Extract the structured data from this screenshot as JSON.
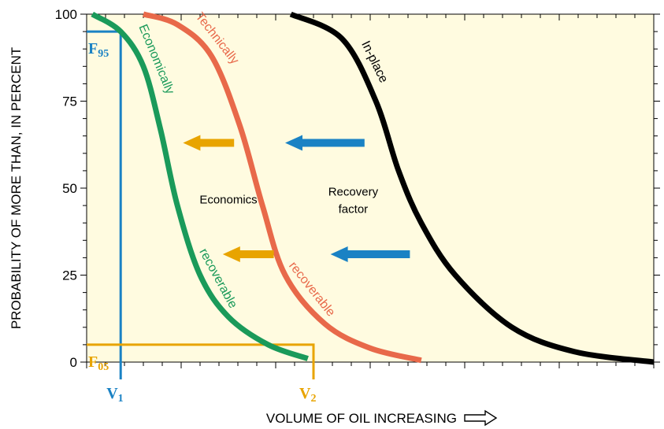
{
  "chart_data": {
    "type": "line",
    "ylabel": "PROBABILITY OF MORE THAN, IN PERCENT",
    "xlabel": "VOLUME OF OIL INCREASING",
    "ylim": [
      0,
      100
    ],
    "y_ticks": [
      "0",
      "25",
      "50",
      "75",
      "100"
    ],
    "x_ticks_labeled": false,
    "series": [
      {
        "name": "Economically recoverable",
        "color": "#1a9a5a",
        "label_parts": [
          "Economically",
          "recoverable"
        ],
        "points": [
          [
            0.01,
            100
          ],
          [
            0.06,
            95
          ],
          [
            0.1,
            85
          ],
          [
            0.13,
            67
          ],
          [
            0.16,
            45
          ],
          [
            0.2,
            25
          ],
          [
            0.25,
            13
          ],
          [
            0.32,
            5
          ],
          [
            0.39,
            1
          ]
        ]
      },
      {
        "name": "Technically recoverable",
        "color": "#e8694a",
        "label_parts": [
          "Technically",
          "recoverable"
        ],
        "points": [
          [
            0.1,
            100
          ],
          [
            0.16,
            97
          ],
          [
            0.22,
            88
          ],
          [
            0.27,
            68
          ],
          [
            0.31,
            45
          ],
          [
            0.35,
            25
          ],
          [
            0.42,
            11
          ],
          [
            0.5,
            4
          ],
          [
            0.59,
            0.5
          ]
        ]
      },
      {
        "name": "In-place",
        "color": "#000000",
        "label_parts": [
          "In-place"
        ],
        "points": [
          [
            0.36,
            100
          ],
          [
            0.45,
            93
          ],
          [
            0.51,
            75
          ],
          [
            0.55,
            55
          ],
          [
            0.59,
            40
          ],
          [
            0.65,
            25
          ],
          [
            0.75,
            10
          ],
          [
            0.86,
            3
          ],
          [
            1.0,
            0
          ]
        ]
      }
    ],
    "annotations": [
      {
        "text": "Economics",
        "x": 0.25,
        "y": 47
      },
      {
        "text_lines": [
          "Recovery",
          "factor"
        ],
        "x": 0.47,
        "y": 47
      }
    ],
    "arrows": [
      {
        "color": "#1a82c4",
        "from": [
          0.49,
          63
        ],
        "to": [
          0.35,
          63
        ]
      },
      {
        "color": "#e8a400",
        "from": [
          0.26,
          63
        ],
        "to": [
          0.17,
          63
        ]
      },
      {
        "color": "#1a82c4",
        "from": [
          0.57,
          31
        ],
        "to": [
          0.43,
          31
        ]
      },
      {
        "color": "#e8a400",
        "from": [
          0.33,
          31
        ],
        "to": [
          0.24,
          31
        ]
      }
    ],
    "markers": [
      {
        "prob_label": "F",
        "prob_sub": "95",
        "vol_label": "V",
        "vol_sub": "1",
        "y": 95,
        "x": 0.06,
        "color": "#1a82c4"
      },
      {
        "prob_label": "F",
        "prob_sub": "05",
        "vol_label": "V",
        "vol_sub": "2",
        "y": 5,
        "x": 0.4,
        "color": "#e8a400"
      }
    ],
    "plot_background": "#fffbe0"
  }
}
